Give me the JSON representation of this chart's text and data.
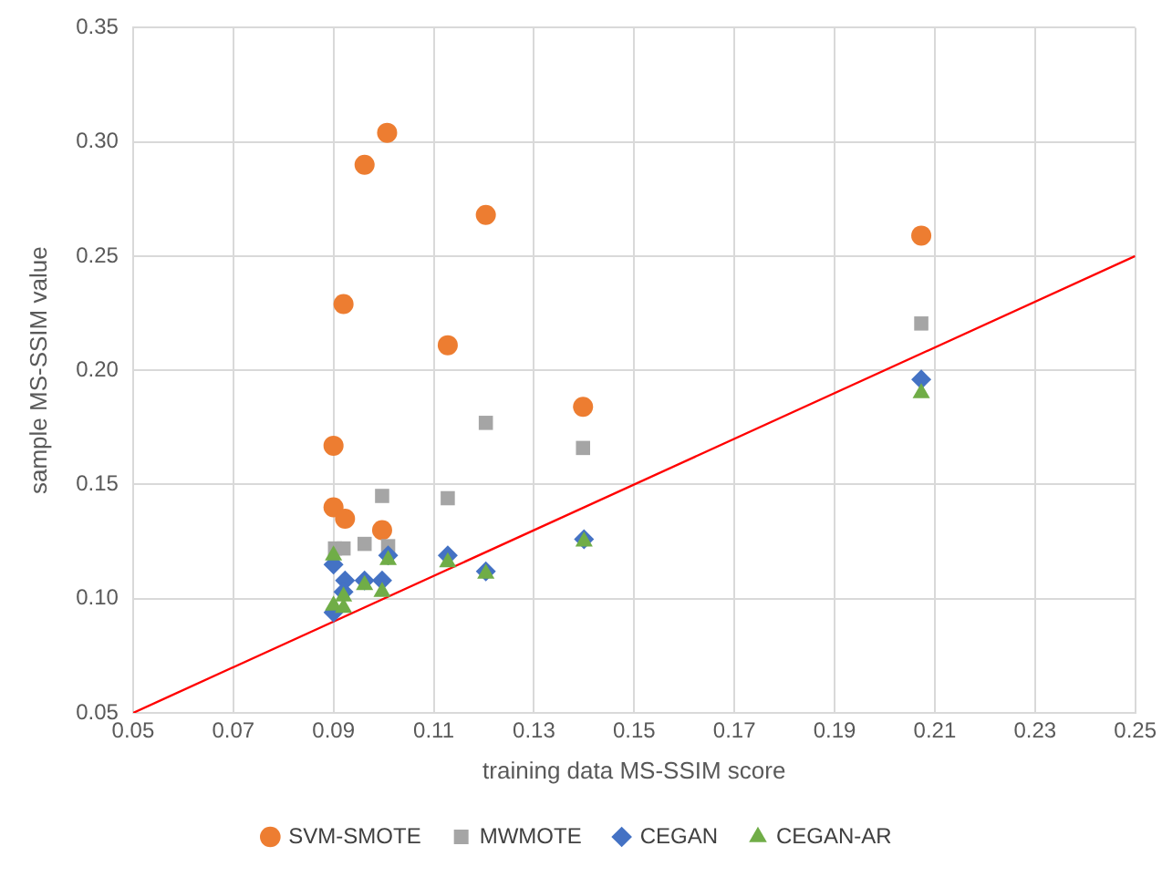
{
  "chart_data": {
    "type": "scatter",
    "xlabel": "training data MS-SSIM score",
    "ylabel": "sample MS-SSIM value",
    "xlim": [
      0.05,
      0.25
    ],
    "xticks": [
      0.05,
      0.07,
      0.09,
      0.11,
      0.13,
      0.15,
      0.17,
      0.19,
      0.21,
      0.23,
      0.25
    ],
    "ylim": [
      0.05,
      0.35
    ],
    "yticks": [
      0.05,
      {
        "value": 0.1,
        "label": "0.10"
      },
      0.15,
      {
        "value": 0.2,
        "label": "0.20"
      },
      0.25,
      {
        "value": 0.3,
        "label": "0.30"
      },
      0.35
    ],
    "grid": true,
    "legend": "bottom",
    "series": [
      {
        "name": "SVM-SMOTE",
        "color": "#ed7d31",
        "marker": "circle",
        "x": [
          0.1007,
          0.0962,
          0.1204,
          0.092,
          0.1128,
          0.1398,
          0.09,
          0.09,
          0.0923,
          0.0997,
          0.2073
        ],
        "values": [
          0.304,
          0.29,
          0.268,
          0.229,
          0.211,
          0.184,
          0.167,
          0.14,
          0.135,
          0.13,
          0.259
        ]
      },
      {
        "name": "MWMOTE",
        "color": "#a5a5a5",
        "marker": "square",
        "x": [
          0.1204,
          0.1398,
          0.0997,
          0.1128,
          0.2073,
          0.0903,
          0.092,
          0.0962,
          0.1009
        ],
        "values": [
          0.177,
          0.166,
          0.145,
          0.144,
          0.2205,
          0.122,
          0.122,
          0.124,
          0.123
        ]
      },
      {
        "name": "CEGAN",
        "color": "#4472c4",
        "marker": "diamond",
        "x": [
          0.09,
          0.0923,
          0.092,
          0.0962,
          0.0997,
          0.1009,
          0.1128,
          0.1204,
          0.09,
          0.14,
          0.2073
        ],
        "values": [
          0.115,
          0.108,
          0.103,
          0.108,
          0.108,
          0.119,
          0.119,
          0.112,
          0.094,
          0.126,
          0.196
        ]
      },
      {
        "name": "CEGAN-AR",
        "color": "#70ad47",
        "marker": "triangle",
        "x": [
          0.09,
          0.092,
          0.0962,
          0.0997,
          0.1009,
          0.1128,
          0.1204,
          0.09,
          0.092,
          0.14,
          0.2073
        ],
        "values": [
          0.119,
          0.101,
          0.106,
          0.103,
          0.117,
          0.116,
          0.111,
          0.097,
          0.096,
          0.125,
          0.19
        ]
      },
      {
        "type": "line",
        "color": "#ff0000",
        "marker": "none",
        "x": [
          0.05,
          0.25
        ],
        "values": [
          0.05,
          0.25
        ]
      }
    ]
  }
}
